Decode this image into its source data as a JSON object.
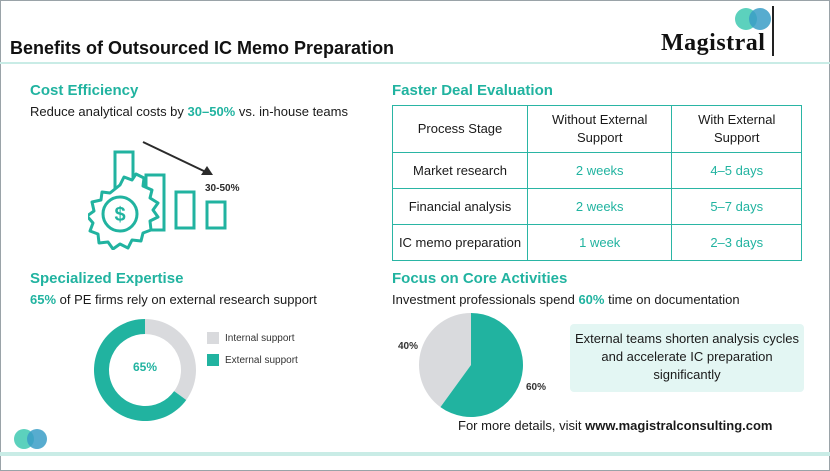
{
  "header": {
    "title": "Benefits of Outsourced IC Memo Preparation",
    "logo_text": "Magistral"
  },
  "cost_efficiency": {
    "heading": "Cost Efficiency",
    "text_before": "Reduce analytical costs by ",
    "highlight": "30–50%",
    "text_after": " vs. in-house teams",
    "graphic_label": "30-50%"
  },
  "faster_deal": {
    "heading": "Faster Deal Evaluation",
    "columns": [
      "Process Stage",
      "Without External Support",
      "With External Support"
    ],
    "rows": [
      {
        "stage": "Market research",
        "without": "2 weeks",
        "with": "4–5 days"
      },
      {
        "stage": "Financial analysis",
        "without": "2 weeks",
        "with": "5–7 days"
      },
      {
        "stage": "IC memo preparation",
        "without": "1 week",
        "with": "2–3 days"
      }
    ]
  },
  "expertise": {
    "heading": "Specialized Expertise",
    "highlight": "65%",
    "text_after": " of PE firms rely on external research support",
    "center_label": "65%",
    "legend": [
      "Internal support",
      "External support"
    ]
  },
  "core": {
    "heading": "Focus on Core Activities",
    "text_before": "Investment professionals spend ",
    "highlight": "60%",
    "text_after": " time on documentation",
    "label_40": "40%",
    "label_60": "60%",
    "callout": "External teams shorten analysis cycles and accelerate IC preparation significantly"
  },
  "footer": {
    "text": "For more details, visit ",
    "url": "www.magistralconsulting.com"
  },
  "chart_data": [
    {
      "type": "pie",
      "categories": [
        "Internal support",
        "External support"
      ],
      "values": [
        35,
        65
      ]
    },
    {
      "type": "pie",
      "categories": [
        "",
        ""
      ],
      "values": [
        40,
        60
      ]
    }
  ],
  "colors": {
    "accent": "#21b3a0",
    "grey": "#d9dadd",
    "light_teal": "#e3f6f3"
  }
}
